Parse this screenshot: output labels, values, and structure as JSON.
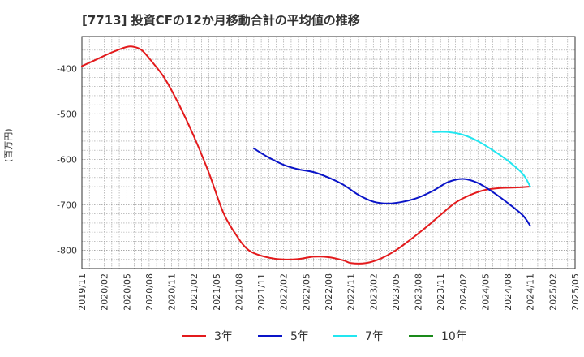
{
  "chart_data": {
    "type": "line",
    "title": "[7713]  投資CFの12か月移動合計の平均値の推移",
    "ylabel": "(百万円)",
    "xlabel": "",
    "ylim": [
      -840,
      -330
    ],
    "yticks": [
      -400,
      -500,
      -600,
      -700,
      -800
    ],
    "x_range": [
      "2019-11",
      "2025-05"
    ],
    "x_ticks": [
      "2019/11",
      "2020/02",
      "2020/05",
      "2020/08",
      "2020/11",
      "2021/02",
      "2021/05",
      "2021/08",
      "2021/11",
      "2022/02",
      "2022/05",
      "2022/08",
      "2022/11",
      "2023/02",
      "2023/05",
      "2023/08",
      "2023/11",
      "2024/02",
      "2024/05",
      "2024/08",
      "2024/11",
      "2025/02",
      "2025/05"
    ],
    "grid": true,
    "legend_position": "bottom",
    "series": [
      {
        "name": "3年",
        "color": "#e31a1c",
        "points": [
          [
            "2019-11",
            -395
          ],
          [
            "2020-01",
            -380
          ],
          [
            "2020-03",
            -365
          ],
          [
            "2020-05",
            -353
          ],
          [
            "2020-06",
            -353
          ],
          [
            "2020-07",
            -360
          ],
          [
            "2020-08",
            -378
          ],
          [
            "2020-10",
            -420
          ],
          [
            "2020-12",
            -480
          ],
          [
            "2021-02",
            -550
          ],
          [
            "2021-04",
            -630
          ],
          [
            "2021-06",
            -720
          ],
          [
            "2021-08",
            -775
          ],
          [
            "2021-09",
            -795
          ],
          [
            "2021-10",
            -806
          ],
          [
            "2021-12",
            -816
          ],
          [
            "2022-02",
            -820
          ],
          [
            "2022-04",
            -819
          ],
          [
            "2022-06",
            -814
          ],
          [
            "2022-08",
            -815
          ],
          [
            "2022-10",
            -822
          ],
          [
            "2022-11",
            -828
          ],
          [
            "2023-01",
            -828
          ],
          [
            "2023-03",
            -818
          ],
          [
            "2023-05",
            -800
          ],
          [
            "2023-07",
            -776
          ],
          [
            "2023-09",
            -750
          ],
          [
            "2023-11",
            -722
          ],
          [
            "2024-01",
            -695
          ],
          [
            "2024-03",
            -678
          ],
          [
            "2024-05",
            -667
          ],
          [
            "2024-07",
            -663
          ],
          [
            "2024-09",
            -662
          ],
          [
            "2024-11",
            -660
          ]
        ]
      },
      {
        "name": "5年",
        "color": "#0a14c8",
        "points": [
          [
            "2021-10",
            -576
          ],
          [
            "2021-12",
            -596
          ],
          [
            "2022-02",
            -612
          ],
          [
            "2022-04",
            -622
          ],
          [
            "2022-06",
            -628
          ],
          [
            "2022-08",
            -640
          ],
          [
            "2022-10",
            -656
          ],
          [
            "2022-12",
            -678
          ],
          [
            "2023-02",
            -693
          ],
          [
            "2023-04",
            -697
          ],
          [
            "2023-06",
            -693
          ],
          [
            "2023-08",
            -684
          ],
          [
            "2023-10",
            -669
          ],
          [
            "2023-12",
            -650
          ],
          [
            "2024-02",
            -643
          ],
          [
            "2024-04",
            -652
          ],
          [
            "2024-06",
            -672
          ],
          [
            "2024-08",
            -696
          ],
          [
            "2024-10",
            -723
          ],
          [
            "2024-11",
            -746
          ]
        ]
      },
      {
        "name": "7年",
        "color": "#22e6f0",
        "points": [
          [
            "2023-10",
            -540
          ],
          [
            "2023-12",
            -540
          ],
          [
            "2024-02",
            -546
          ],
          [
            "2024-04",
            -560
          ],
          [
            "2024-06",
            -580
          ],
          [
            "2024-08",
            -603
          ],
          [
            "2024-10",
            -632
          ],
          [
            "2024-11",
            -660
          ]
        ]
      },
      {
        "name": "10年",
        "color": "#1a8a1a",
        "points": []
      }
    ]
  }
}
